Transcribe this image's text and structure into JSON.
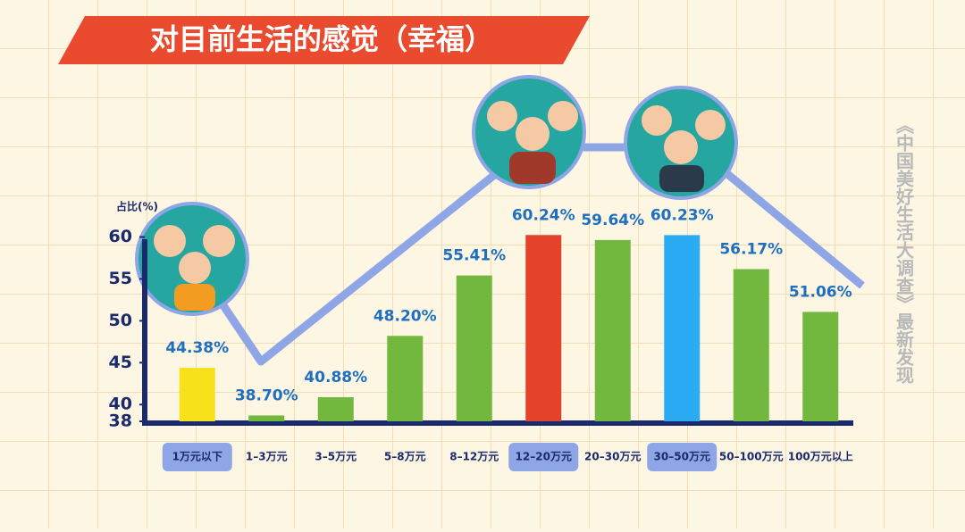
{
  "chart_data": {
    "type": "bar",
    "title": "对目前生活的感觉（幸福）",
    "y_label": "占比(%)",
    "side_text": "《中国美好生活大调查》最新发现",
    "categories": [
      "1万元以下",
      "1–3万元",
      "3–5万元",
      "5–8万元",
      "8–12万元",
      "12–20万元",
      "20–30万元",
      "30–50万元",
      "50–100万元",
      "100万元以上"
    ],
    "values": [
      44.38,
      38.7,
      40.88,
      48.2,
      55.41,
      60.24,
      59.64,
      60.23,
      56.17,
      51.06
    ],
    "value_labels": [
      "44.38%",
      "38.70%",
      "40.88%",
      "48.20%",
      "55.41%",
      "60.24%",
      "59.64%",
      "60.23%",
      "56.17%",
      "51.06%"
    ],
    "color": "#72b83e",
    "colors": [
      "#f7e11a",
      "#72b83e",
      "#72b83e",
      "#72b83e",
      "#72b83e",
      "#e4432b",
      "#72b83e",
      "#2aabf3",
      "#72b83e",
      "#72b83e"
    ],
    "ylim": [
      38,
      64
    ],
    "yticks": [
      38,
      40,
      45,
      50,
      55,
      60
    ]
  }
}
